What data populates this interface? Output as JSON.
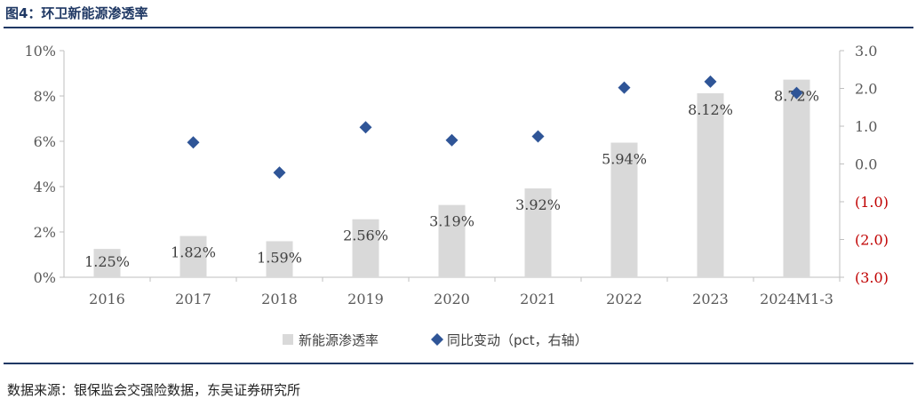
{
  "header": {
    "title": "图4：环卫新能源渗透率"
  },
  "footer": {
    "source": "数据来源：银保监会交强险数据，东吴证券研究所"
  },
  "chart_data": {
    "type": "bar",
    "categories": [
      "2016",
      "2017",
      "2018",
      "2019",
      "2020",
      "2021",
      "2022",
      "2023",
      "2024M1-3"
    ],
    "series": [
      {
        "name": "新能源渗透率",
        "type": "bar",
        "axis": "left",
        "values": [
          1.25,
          1.82,
          1.59,
          2.56,
          3.19,
          3.92,
          5.94,
          8.12,
          8.72
        ],
        "labels": [
          "1.25%",
          "1.82%",
          "1.59%",
          "2.56%",
          "3.19%",
          "3.92%",
          "5.94%",
          "8.12%",
          "8.72%"
        ],
        "color": "#d9d9d9"
      },
      {
        "name": "同比变动（pct，右轴）",
        "type": "scatter",
        "marker": "diamond",
        "axis": "right",
        "values": [
          null,
          0.57,
          -0.23,
          0.97,
          0.63,
          0.73,
          2.02,
          2.18,
          1.88
        ],
        "color": "#2f5597"
      }
    ],
    "left_axis": {
      "ylim": [
        0,
        10
      ],
      "ticks": [
        0,
        2,
        4,
        6,
        8,
        10
      ],
      "tick_labels": [
        "0%",
        "2%",
        "4%",
        "6%",
        "8%",
        "10%"
      ]
    },
    "right_axis": {
      "ylim": [
        -3,
        3
      ],
      "ticks": [
        3,
        2,
        1,
        0,
        -1,
        -2,
        -3
      ],
      "tick_labels": [
        "3.0",
        "2.0",
        "1.0",
        "0.0",
        "(1.0)",
        "(2.0)",
        "(3.0)"
      ],
      "negative_color": "#c00000"
    },
    "grid": false,
    "legend": {
      "position": "bottom"
    }
  }
}
